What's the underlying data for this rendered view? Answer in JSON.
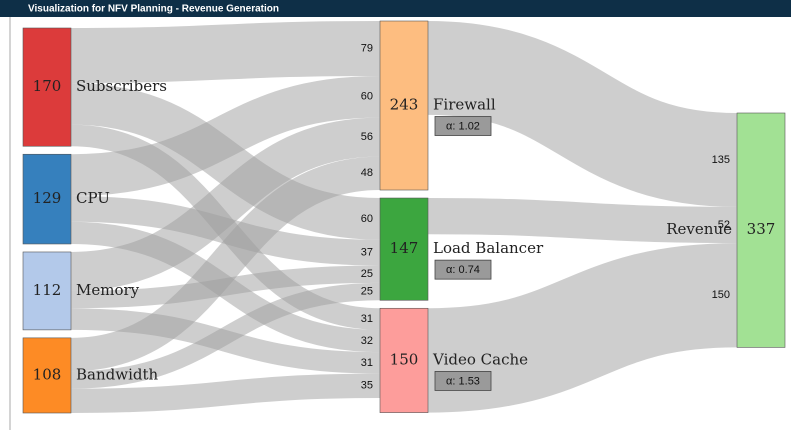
{
  "chart_data": {
    "type": "sankey",
    "title": "Visualization for NFV Planning - Revenue Generation",
    "nodes": [
      {
        "name": "Subscribers",
        "value": 170,
        "color": "#dc3b3b"
      },
      {
        "name": "CPU",
        "value": 129,
        "color": "#3680bd"
      },
      {
        "name": "Memory",
        "value": 112,
        "color": "#b3c9ea"
      },
      {
        "name": "Bandwidth",
        "value": 108,
        "color": "#fd8b25"
      },
      {
        "name": "Firewall",
        "value": 243,
        "color": "#fdbd80",
        "note": "α: 1.02"
      },
      {
        "name": "Load Balancer",
        "value": 147,
        "color": "#3ca63f",
        "note": "α: 0.74"
      },
      {
        "name": "Video Cache",
        "value": 150,
        "color": "#fd9d9b",
        "note": "α: 1.53"
      },
      {
        "name": "Revenue",
        "value": 337,
        "color": "#a2e194"
      }
    ],
    "links": [
      {
        "source": 0,
        "target": 4,
        "value": 79
      },
      {
        "source": 0,
        "target": 5,
        "value": 60
      },
      {
        "source": 0,
        "target": 6,
        "value": 31
      },
      {
        "source": 1,
        "target": 4,
        "value": 60
      },
      {
        "source": 1,
        "target": 5,
        "value": 37
      },
      {
        "source": 1,
        "target": 6,
        "value": 32
      },
      {
        "source": 2,
        "target": 4,
        "value": 56
      },
      {
        "source": 2,
        "target": 5,
        "value": 25
      },
      {
        "source": 2,
        "target": 6,
        "value": 31
      },
      {
        "source": 3,
        "target": 4,
        "value": 48
      },
      {
        "source": 3,
        "target": 5,
        "value": 25
      },
      {
        "source": 3,
        "target": 6,
        "value": 35
      },
      {
        "source": 4,
        "target": 7,
        "value": 135
      },
      {
        "source": 5,
        "target": 7,
        "value": 52
      },
      {
        "source": 6,
        "target": 7,
        "value": 150
      }
    ]
  }
}
